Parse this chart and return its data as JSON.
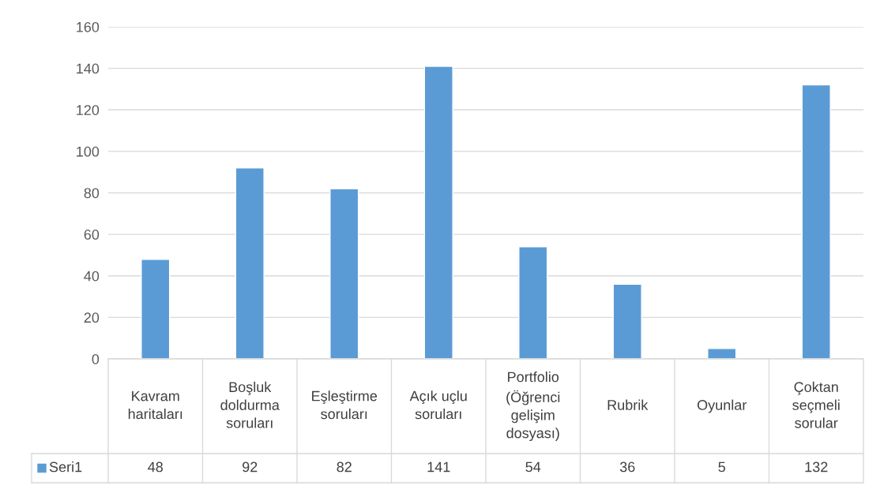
{
  "chart_data": {
    "type": "bar",
    "categories": [
      "Kavram haritaları",
      "Boşluk doldurma soruları",
      "Eşleştirme soruları",
      "Açık uçlu soruları",
      "Portfolio (Öğrenci gelişim dosyası)",
      "Rubrik",
      "Oyunlar",
      "Çoktan seçmeli sorular"
    ],
    "series": [
      {
        "name": "Seri1",
        "color": "#5b9bd5",
        "values": [
          48,
          92,
          82,
          141,
          54,
          36,
          5,
          132
        ]
      }
    ],
    "ylim": [
      0,
      160
    ],
    "yticks": [
      0,
      20,
      40,
      60,
      80,
      100,
      120,
      140,
      160
    ],
    "grid": "y",
    "legend": "bottom left",
    "data_labels": true
  }
}
